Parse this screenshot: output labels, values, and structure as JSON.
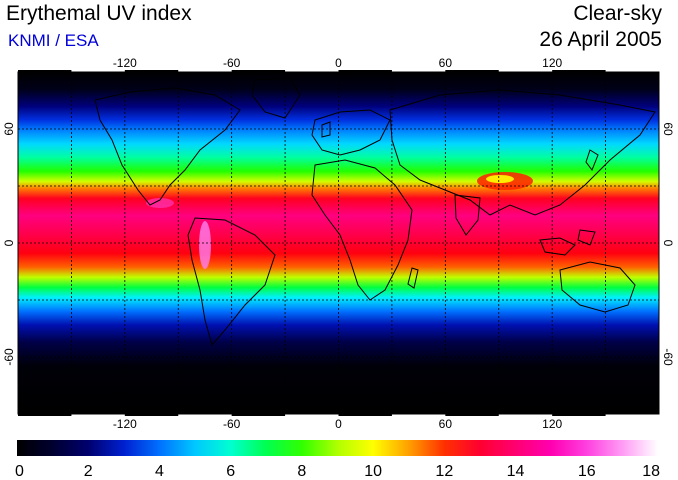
{
  "header": {
    "title": "Erythemal UV index",
    "credit": "KNMI / ESA",
    "condition": "Clear-sky",
    "date": "26 April 2005"
  },
  "map": {
    "lon_range": [
      -180,
      180
    ],
    "lat_range": [
      -90,
      90
    ],
    "lon_ticks": [
      {
        "value": -120,
        "label": "-120"
      },
      {
        "value": -60,
        "label": "-60"
      },
      {
        "value": 0,
        "label": "0"
      },
      {
        "value": 60,
        "label": "60"
      },
      {
        "value": 120,
        "label": "120"
      }
    ],
    "lat_ticks": [
      {
        "value": 60,
        "label": "60"
      },
      {
        "value": 0,
        "label": "0"
      },
      {
        "value": -60,
        "label": "-60"
      }
    ],
    "grid_dashed": true
  },
  "colorbar": {
    "min": 0,
    "max": 18,
    "labels": [
      "0",
      "2",
      "4",
      "6",
      "8",
      "10",
      "12",
      "14",
      "16",
      "18"
    ],
    "stops": [
      {
        "value": 0,
        "color": "#000000"
      },
      {
        "value": 1,
        "color": "#000030"
      },
      {
        "value": 2,
        "color": "#00006e"
      },
      {
        "value": 3,
        "color": "#0020d0"
      },
      {
        "value": 4,
        "color": "#0070ff"
      },
      {
        "value": 5,
        "color": "#00c8ff"
      },
      {
        "value": 6,
        "color": "#00ffd0"
      },
      {
        "value": 7,
        "color": "#00ff50"
      },
      {
        "value": 8,
        "color": "#30ff00"
      },
      {
        "value": 9,
        "color": "#b0ff00"
      },
      {
        "value": 10,
        "color": "#ffff00"
      },
      {
        "value": 11,
        "color": "#ffa000"
      },
      {
        "value": 12,
        "color": "#ff3000"
      },
      {
        "value": 13,
        "color": "#ff0030"
      },
      {
        "value": 14,
        "color": "#ff0070"
      },
      {
        "value": 15,
        "color": "#ff00b0"
      },
      {
        "value": 16,
        "color": "#ff40e0"
      },
      {
        "value": 17,
        "color": "#ff9cf4"
      },
      {
        "value": 18,
        "color": "#ffffff"
      }
    ]
  }
}
